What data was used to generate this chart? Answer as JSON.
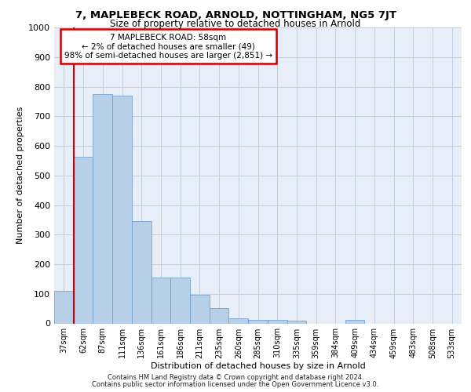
{
  "title_line1": "7, MAPLEBECK ROAD, ARNOLD, NOTTINGHAM, NG5 7JT",
  "title_line2": "Size of property relative to detached houses in Arnold",
  "xlabel": "Distribution of detached houses by size in Arnold",
  "ylabel": "Number of detached properties",
  "categories": [
    "37sqm",
    "62sqm",
    "87sqm",
    "111sqm",
    "136sqm",
    "161sqm",
    "186sqm",
    "211sqm",
    "235sqm",
    "260sqm",
    "285sqm",
    "310sqm",
    "335sqm",
    "359sqm",
    "384sqm",
    "409sqm",
    "434sqm",
    "459sqm",
    "483sqm",
    "508sqm",
    "533sqm"
  ],
  "values": [
    110,
    562,
    775,
    770,
    345,
    155,
    155,
    97,
    52,
    18,
    13,
    13,
    8,
    0,
    0,
    13,
    0,
    0,
    0,
    0,
    0
  ],
  "bar_color": "#b8cfe8",
  "bar_edge_color": "#6699cc",
  "background_color": "#e8eef8",
  "grid_color": "#c5cfe0",
  "marker_color": "#cc0000",
  "annotation_text": "7 MAPLEBECK ROAD: 58sqm\n← 2% of detached houses are smaller (49)\n98% of semi-detached houses are larger (2,851) →",
  "annotation_box_color": "#ffffff",
  "annotation_box_edge": "#cc0000",
  "ylim": [
    0,
    1000
  ],
  "yticks": [
    0,
    100,
    200,
    300,
    400,
    500,
    600,
    700,
    800,
    900,
    1000
  ],
  "footer_line1": "Contains HM Land Registry data © Crown copyright and database right 2024.",
  "footer_line2": "Contains public sector information licensed under the Open Government Licence v3.0."
}
